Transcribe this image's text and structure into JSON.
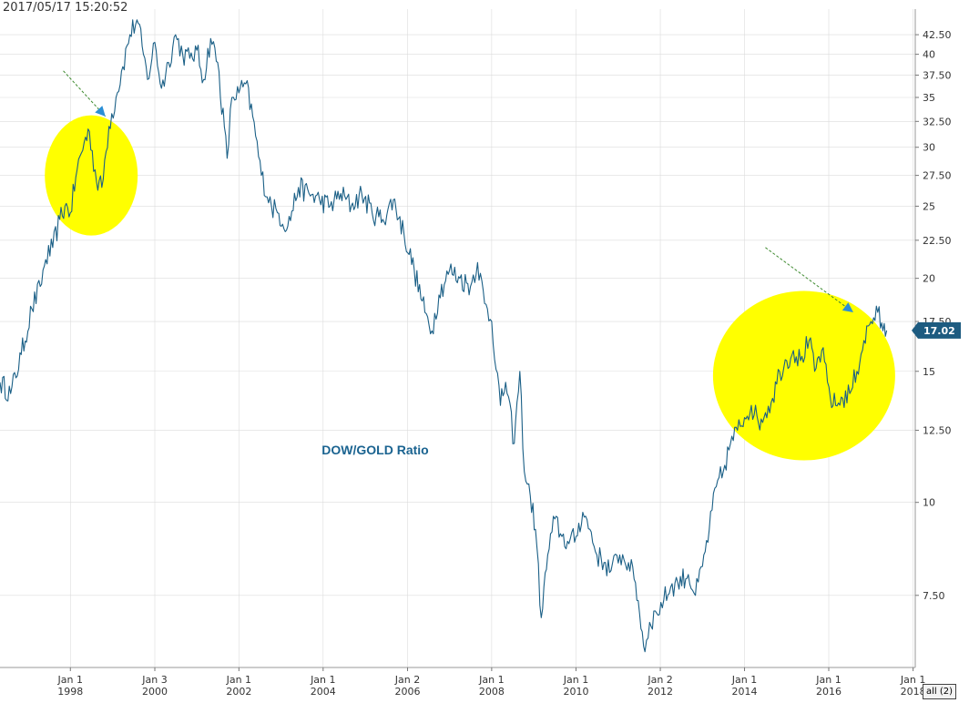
{
  "header": {
    "timestamp": "2017/05/17 15:20:52"
  },
  "controls": {
    "range_button": "all (2)"
  },
  "colors": {
    "line": "#1a5f86",
    "highlight": "#ffff00",
    "arrow": "#2b8fd6",
    "arrow_dash": "#3d8a2e",
    "price_tag": "#1d5b80",
    "grid": "#dcdcdc"
  },
  "chart_data": {
    "type": "line",
    "title": "",
    "annotation": "DOW/GOLD Ratio",
    "xlabel": "",
    "ylabel": "",
    "y_scale": "log",
    "ylim": [
      6.0,
      46.0
    ],
    "xlim": [
      "1996-05-01",
      "2018-01-20"
    ],
    "x_ticks": [
      {
        "month": "Jan 1",
        "year": "1998",
        "date": "1998-01-01"
      },
      {
        "month": "Jan 3",
        "year": "2000",
        "date": "2000-01-03"
      },
      {
        "month": "Jan 1",
        "year": "2002",
        "date": "2002-01-01"
      },
      {
        "month": "Jan 1",
        "year": "2004",
        "date": "2004-01-01"
      },
      {
        "month": "Jan 2",
        "year": "2006",
        "date": "2006-01-02"
      },
      {
        "month": "Jan 1",
        "year": "2008",
        "date": "2008-01-01"
      },
      {
        "month": "Jan 1",
        "year": "2010",
        "date": "2010-01-01"
      },
      {
        "month": "Jan 2",
        "year": "2012",
        "date": "2012-01-02"
      },
      {
        "month": "Jan 1",
        "year": "2014",
        "date": "2014-01-01"
      },
      {
        "month": "Jan 1",
        "year": "2016",
        "date": "2016-01-01"
      },
      {
        "month": "Jan 1",
        "year": "2018",
        "date": "2018-01-01"
      }
    ],
    "y_ticks": [
      7.5,
      10,
      12.5,
      15,
      17.5,
      20,
      22.5,
      25,
      27.5,
      30,
      32.5,
      35,
      37.5,
      40,
      42.5
    ],
    "y_tick_labels": [
      "7.50",
      "10",
      "12.50",
      "15",
      "17.50",
      "20",
      "22.50",
      "25",
      "27.50",
      "30",
      "32.50",
      "35",
      "37.50",
      "40",
      "42.50"
    ],
    "last_value_label": "17.02",
    "series": [
      {
        "values": [
          {
            "x": "1996-05-01",
            "y": 14.5
          },
          {
            "x": "1996-08-01",
            "y": 14.0
          },
          {
            "x": "1996-11-01",
            "y": 15.8
          },
          {
            "x": "1997-02-01",
            "y": 18.2
          },
          {
            "x": "1997-04-15",
            "y": 19.5
          },
          {
            "x": "1997-06-01",
            "y": 21.2
          },
          {
            "x": "1997-08-01",
            "y": 22.0
          },
          {
            "x": "1997-10-01",
            "y": 24.0
          },
          {
            "x": "1997-11-15",
            "y": 25.0
          },
          {
            "x": "1998-01-01",
            "y": 24.5
          },
          {
            "x": "1998-03-01",
            "y": 28.0
          },
          {
            "x": "1998-05-01",
            "y": 30.5
          },
          {
            "x": "1998-06-15",
            "y": 31.5
          },
          {
            "x": "1998-08-15",
            "y": 27.0
          },
          {
            "x": "1998-10-01",
            "y": 26.5
          },
          {
            "x": "1998-12-01",
            "y": 32.0
          },
          {
            "x": "1999-02-01",
            "y": 35.0
          },
          {
            "x": "1999-04-01",
            "y": 38.5
          },
          {
            "x": "1999-06-01",
            "y": 42.5
          },
          {
            "x": "1999-08-01",
            "y": 44.5
          },
          {
            "x": "1999-09-15",
            "y": 41.0
          },
          {
            "x": "1999-11-01",
            "y": 37.0
          },
          {
            "x": "2000-01-03",
            "y": 41.5
          },
          {
            "x": "2000-03-01",
            "y": 36.0
          },
          {
            "x": "2000-05-01",
            "y": 39.0
          },
          {
            "x": "2000-07-01",
            "y": 42.5
          },
          {
            "x": "2000-09-01",
            "y": 40.0
          },
          {
            "x": "2000-11-01",
            "y": 39.5
          },
          {
            "x": "2001-01-01",
            "y": 40.5
          },
          {
            "x": "2001-03-01",
            "y": 37.0
          },
          {
            "x": "2001-05-01",
            "y": 42.0
          },
          {
            "x": "2001-07-01",
            "y": 39.0
          },
          {
            "x": "2001-09-21",
            "y": 29.0
          },
          {
            "x": "2001-11-01",
            "y": 35.0
          },
          {
            "x": "2002-01-01",
            "y": 35.5
          },
          {
            "x": "2002-03-01",
            "y": 36.5
          },
          {
            "x": "2002-05-01",
            "y": 33.0
          },
          {
            "x": "2002-07-15",
            "y": 27.5
          },
          {
            "x": "2002-10-10",
            "y": 25.0
          },
          {
            "x": "2002-12-01",
            "y": 24.5
          },
          {
            "x": "2003-03-01",
            "y": 23.5
          },
          {
            "x": "2003-06-01",
            "y": 26.5
          },
          {
            "x": "2003-09-01",
            "y": 26.0
          },
          {
            "x": "2003-12-01",
            "y": 25.5
          },
          {
            "x": "2004-03-01",
            "y": 25.0
          },
          {
            "x": "2004-06-01",
            "y": 26.0
          },
          {
            "x": "2004-09-01",
            "y": 25.0
          },
          {
            "x": "2004-12-01",
            "y": 26.0
          },
          {
            "x": "2005-03-01",
            "y": 24.5
          },
          {
            "x": "2005-06-01",
            "y": 24.0
          },
          {
            "x": "2005-09-01",
            "y": 25.5
          },
          {
            "x": "2005-12-01",
            "y": 23.0
          },
          {
            "x": "2006-03-01",
            "y": 20.5
          },
          {
            "x": "2006-06-01",
            "y": 18.0
          },
          {
            "x": "2006-08-01",
            "y": 17.0
          },
          {
            "x": "2006-10-01",
            "y": 19.0
          },
          {
            "x": "2007-01-01",
            "y": 20.5
          },
          {
            "x": "2007-04-01",
            "y": 20.0
          },
          {
            "x": "2007-07-01",
            "y": 19.5
          },
          {
            "x": "2007-09-01",
            "y": 21.0
          },
          {
            "x": "2007-11-01",
            "y": 18.5
          },
          {
            "x": "2008-01-01",
            "y": 17.5
          },
          {
            "x": "2008-03-17",
            "y": 13.5
          },
          {
            "x": "2008-05-01",
            "y": 14.5
          },
          {
            "x": "2008-07-15",
            "y": 12.0
          },
          {
            "x": "2008-09-01",
            "y": 15.0
          },
          {
            "x": "2008-10-10",
            "y": 11.0
          },
          {
            "x": "2008-12-01",
            "y": 10.2
          },
          {
            "x": "2009-01-15",
            "y": 9.2
          },
          {
            "x": "2009-03-06",
            "y": 7.0
          },
          {
            "x": "2009-05-01",
            "y": 8.5
          },
          {
            "x": "2009-07-01",
            "y": 9.5
          },
          {
            "x": "2009-09-01",
            "y": 9.0
          },
          {
            "x": "2009-11-01",
            "y": 8.8
          },
          {
            "x": "2010-01-01",
            "y": 9.0
          },
          {
            "x": "2010-03-01",
            "y": 9.7
          },
          {
            "x": "2010-05-01",
            "y": 9.2
          },
          {
            "x": "2010-07-01",
            "y": 8.5
          },
          {
            "x": "2010-09-01",
            "y": 8.3
          },
          {
            "x": "2010-11-01",
            "y": 8.1
          },
          {
            "x": "2011-01-15",
            "y": 8.5
          },
          {
            "x": "2011-04-01",
            "y": 8.3
          },
          {
            "x": "2011-06-01",
            "y": 7.8
          },
          {
            "x": "2011-08-22",
            "y": 6.3
          },
          {
            "x": "2011-10-01",
            "y": 6.9
          },
          {
            "x": "2011-12-01",
            "y": 7.1
          },
          {
            "x": "2012-02-01",
            "y": 7.4
          },
          {
            "x": "2012-04-01",
            "y": 7.7
          },
          {
            "x": "2012-06-01",
            "y": 7.8
          },
          {
            "x": "2012-09-01",
            "y": 8.0
          },
          {
            "x": "2012-11-01",
            "y": 7.5
          },
          {
            "x": "2013-01-01",
            "y": 8.2
          },
          {
            "x": "2013-03-01",
            "y": 9.2
          },
          {
            "x": "2013-05-01",
            "y": 10.5
          },
          {
            "x": "2013-07-01",
            "y": 11.0
          },
          {
            "x": "2013-09-01",
            "y": 12.0
          },
          {
            "x": "2013-11-01",
            "y": 12.5
          },
          {
            "x": "2014-01-01",
            "y": 13.0
          },
          {
            "x": "2014-03-01",
            "y": 13.5
          },
          {
            "x": "2014-05-01",
            "y": 12.8
          },
          {
            "x": "2014-07-01",
            "y": 13.2
          },
          {
            "x": "2014-09-01",
            "y": 13.8
          },
          {
            "x": "2014-11-01",
            "y": 15.0
          },
          {
            "x": "2015-01-01",
            "y": 15.5
          },
          {
            "x": "2015-03-01",
            "y": 16.0
          },
          {
            "x": "2015-05-01",
            "y": 15.5
          },
          {
            "x": "2015-07-15",
            "y": 16.5
          },
          {
            "x": "2015-09-01",
            "y": 15.0
          },
          {
            "x": "2015-11-01",
            "y": 16.0
          },
          {
            "x": "2016-01-15",
            "y": 13.8
          },
          {
            "x": "2016-03-01",
            "y": 13.5
          },
          {
            "x": "2016-05-01",
            "y": 13.8
          },
          {
            "x": "2016-07-01",
            "y": 14.0
          },
          {
            "x": "2016-09-01",
            "y": 15.0
          },
          {
            "x": "2016-11-01",
            "y": 16.5
          },
          {
            "x": "2017-01-01",
            "y": 17.5
          },
          {
            "x": "2017-03-01",
            "y": 18.0
          },
          {
            "x": "2017-04-15",
            "y": 17.0
          },
          {
            "x": "2017-05-17",
            "y": 17.02
          }
        ]
      }
    ],
    "highlights": [
      {
        "shape": "ellipse",
        "center_x": "1998-07-01",
        "center_y": 27.5
      },
      {
        "shape": "ellipse",
        "center_x": "2015-06-01",
        "center_y": 14.8
      }
    ],
    "arrows": [
      {
        "from_x": "1997-11-01",
        "from_y": 38.0,
        "to_x": "1998-11-01",
        "to_y": 33.0
      },
      {
        "from_x": "2014-07-01",
        "from_y": 22.0,
        "to_x": "2016-08-01",
        "to_y": 18.0
      }
    ]
  }
}
